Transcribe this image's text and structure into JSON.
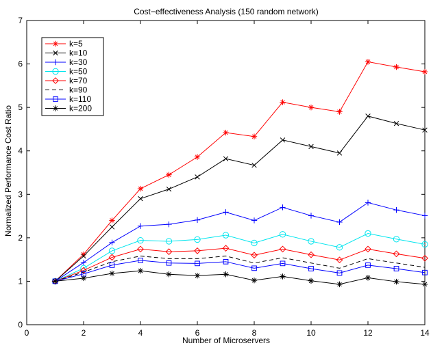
{
  "chart_data": {
    "type": "line",
    "title": "Cost−effectiveness Analysis (150 random network)",
    "xlabel": "Number of Microservers",
    "ylabel": "Normalized Performance Cost Ratio",
    "xlim": [
      0,
      14
    ],
    "ylim": [
      0,
      7
    ],
    "xticks": [
      0,
      2,
      4,
      6,
      8,
      10,
      12,
      14
    ],
    "yticks": [
      0,
      1,
      2,
      3,
      4,
      5,
      6,
      7
    ],
    "grid": false,
    "legend_position": "top-left",
    "x": [
      1,
      2,
      3,
      4,
      5,
      6,
      7,
      8,
      9,
      10,
      11,
      12,
      13,
      14
    ],
    "series": [
      {
        "name": "k=5",
        "color": "#ff0000",
        "marker": "asterisk",
        "dash": "solid",
        "values": [
          1.0,
          1.62,
          2.4,
          3.13,
          3.45,
          3.86,
          4.42,
          4.33,
          5.12,
          5.0,
          4.9,
          6.05,
          5.93,
          5.82
        ]
      },
      {
        "name": "k=10",
        "color": "#000000",
        "marker": "x",
        "dash": "solid",
        "values": [
          1.0,
          1.58,
          2.25,
          2.9,
          3.12,
          3.4,
          3.82,
          3.67,
          4.25,
          4.1,
          3.95,
          4.8,
          4.63,
          4.48
        ]
      },
      {
        "name": "k=30",
        "color": "#0000ff",
        "marker": "plus",
        "dash": "solid",
        "values": [
          1.0,
          1.43,
          1.89,
          2.27,
          2.31,
          2.41,
          2.59,
          2.4,
          2.7,
          2.51,
          2.36,
          2.81,
          2.64,
          2.51
        ]
      },
      {
        "name": "k=50",
        "color": "#00e5ee",
        "marker": "circle",
        "dash": "solid",
        "values": [
          1.0,
          1.3,
          1.7,
          1.94,
          1.92,
          1.96,
          2.06,
          1.88,
          2.08,
          1.92,
          1.78,
          2.1,
          1.97,
          1.85
        ]
      },
      {
        "name": "k=70",
        "color": "#ff0000",
        "marker": "diamond",
        "dash": "solid",
        "values": [
          1.0,
          1.25,
          1.55,
          1.74,
          1.68,
          1.7,
          1.76,
          1.6,
          1.74,
          1.61,
          1.49,
          1.74,
          1.63,
          1.53
        ]
      },
      {
        "name": "k=90",
        "color": "#000000",
        "marker": "none",
        "dash": "dashed",
        "values": [
          1.0,
          1.21,
          1.45,
          1.58,
          1.52,
          1.52,
          1.58,
          1.42,
          1.54,
          1.42,
          1.3,
          1.52,
          1.42,
          1.32
        ]
      },
      {
        "name": "k=110",
        "color": "#0000ff",
        "marker": "square",
        "dash": "solid",
        "values": [
          1.0,
          1.17,
          1.37,
          1.48,
          1.42,
          1.41,
          1.45,
          1.3,
          1.41,
          1.29,
          1.19,
          1.37,
          1.29,
          1.2
        ]
      },
      {
        "name": "k=200",
        "color": "#000000",
        "marker": "asterisk",
        "dash": "solid",
        "values": [
          1.0,
          1.07,
          1.18,
          1.24,
          1.16,
          1.13,
          1.16,
          1.02,
          1.11,
          1.01,
          0.93,
          1.08,
          0.99,
          0.93
        ]
      }
    ]
  }
}
